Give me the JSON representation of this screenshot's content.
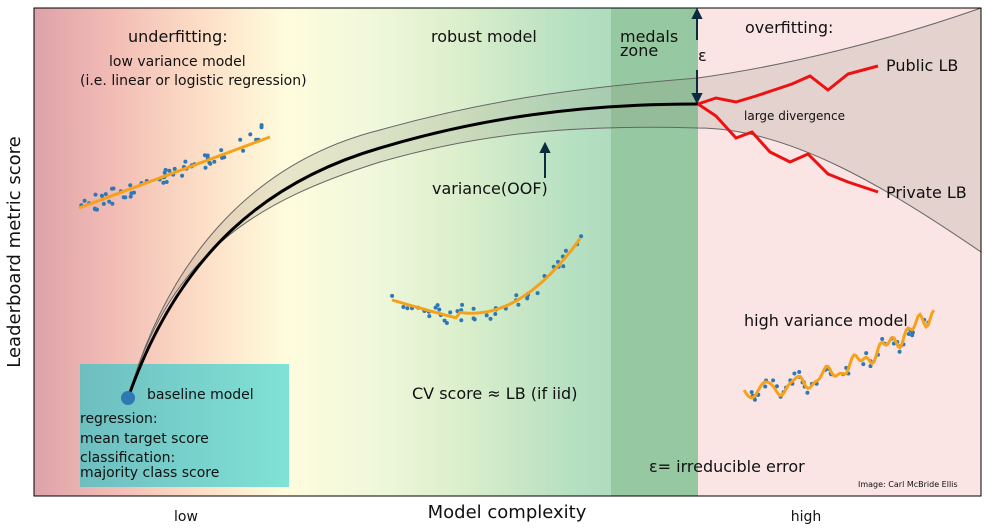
{
  "axes": {
    "ylabel": "Leaderboard metric score",
    "xlabel": "Model complexity",
    "x_tick_low": "low",
    "x_tick_high": "high"
  },
  "regions": {
    "underfitting": "underfitting:",
    "robust": "robust model",
    "medals_line1": "medals",
    "medals_line2": "zone",
    "overfitting": "overfitting:"
  },
  "annotations": {
    "low_variance_1": "low variance model",
    "low_variance_2": "(i.e. linear or logistic regression)",
    "variance_oof": "variance(OOF)",
    "cv_score": "CV score ≈ LB (if iid)",
    "high_variance": "high variance model",
    "epsilon": "ε",
    "irreducible_error": "ε= irreducible error",
    "large_divergence": "large divergence",
    "public_lb": "Public LB",
    "private_lb": "Private LB",
    "credit": "Image: Carl McBride Ellis"
  },
  "baseline": {
    "label": "baseline model",
    "regression_heading": "regression:",
    "regression_value": "mean target score",
    "classification_heading": "classification:",
    "classification_value": "majority class score"
  },
  "colors": {
    "underfit_left": "#e0a4ab",
    "cream": "#fefde2",
    "medals_green": "#94c79f",
    "overfit_bg": "#fbe4e4",
    "baseline_box": "#7ddcd2",
    "fit_line": "#f5a21b",
    "scatter_point": "#2f78b4",
    "lb_line": "#ee1111"
  }
}
